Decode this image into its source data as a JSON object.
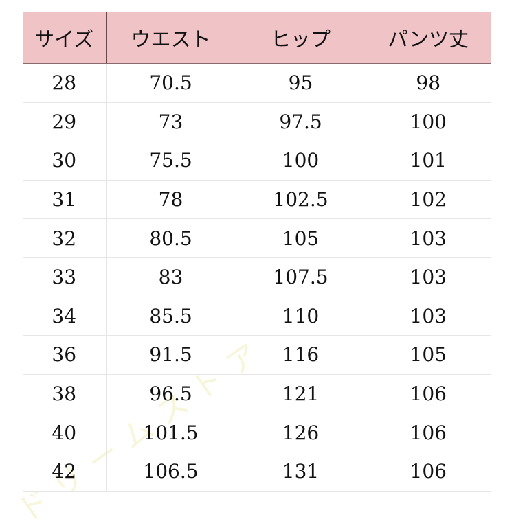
{
  "table": {
    "headers": [
      "サイズ",
      "ウエスト",
      "ヒップ",
      "パンツ丈"
    ],
    "rows": [
      [
        "28",
        "70.5",
        "95",
        "98"
      ],
      [
        "29",
        "73",
        "97.5",
        "100"
      ],
      [
        "30",
        "75.5",
        "100",
        "101"
      ],
      [
        "31",
        "78",
        "102.5",
        "102"
      ],
      [
        "32",
        "80.5",
        "105",
        "103"
      ],
      [
        "33",
        "83",
        "107.5",
        "103"
      ],
      [
        "34",
        "85.5",
        "110",
        "103"
      ],
      [
        "36",
        "91.5",
        "116",
        "105"
      ],
      [
        "38",
        "96.5",
        "121",
        "106"
      ],
      [
        "40",
        "101.5",
        "126",
        "106"
      ],
      [
        "42",
        "106.5",
        "131",
        "106"
      ]
    ],
    "header_color": "#f0c3c7"
  },
  "watermark": "ドリームストア"
}
